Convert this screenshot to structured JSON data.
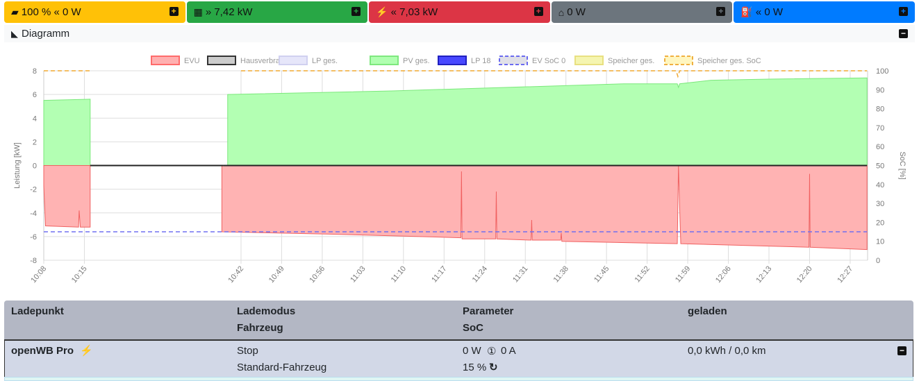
{
  "topbar": [
    {
      "icon": "battery-icon",
      "glyph": "▰",
      "text": "100 % « 0 W",
      "color": "#ffc107"
    },
    {
      "icon": "solar-panel-icon",
      "glyph": "▦",
      "text": "» 7,42 kW",
      "color": "#28a745"
    },
    {
      "icon": "power-grid-icon",
      "glyph": "⚡",
      "text": "« 7,03 kW",
      "color": "#dc3545"
    },
    {
      "icon": "home-icon",
      "glyph": "⌂",
      "text": "0 W",
      "color": "#6c757d"
    },
    {
      "icon": "charging-station-icon",
      "glyph": "⛽",
      "text": "« 0 W",
      "color": "#007bff"
    }
  ],
  "diagram": {
    "title": "Diagramm"
  },
  "chart_data": {
    "type": "area",
    "legend": [
      {
        "name": "EVU",
        "fill": "#ffb0b0",
        "stroke": "#ff6b6b",
        "dash": false
      },
      {
        "name": "Hausverbrauch",
        "fill": "#cccccc",
        "stroke": "#333333",
        "dash": false
      },
      {
        "name": "LP ges.",
        "fill": "#e6e6fa",
        "stroke": "#d0d0f0",
        "dash": false
      },
      {
        "name": "PV ges.",
        "fill": "#b0ffb0",
        "stroke": "#7ee87e",
        "dash": false
      },
      {
        "name": "LP 18",
        "fill": "#4848ff",
        "stroke": "#2020c0",
        "dash": false
      },
      {
        "name": "EV SoC 0",
        "fill": "#e0e0e8",
        "stroke": "#6a6af0",
        "dash": true
      },
      {
        "name": "Speicher ges.",
        "fill": "#f5f5b0",
        "stroke": "#e8e080",
        "dash": false
      },
      {
        "name": "Speicher ges. SoC",
        "fill": "#fff6c0",
        "stroke": "#f0b040",
        "dash": true
      }
    ],
    "ylabel": "Leistung [kW]",
    "y2label": "SoC [%]",
    "ylim": [
      -8,
      8
    ],
    "y2lim": [
      0,
      100
    ],
    "yticks": [
      "8",
      "6",
      "4",
      "2",
      "0",
      "-2",
      "-4",
      "-6",
      "-8"
    ],
    "y2ticks": [
      "100",
      "90",
      "80",
      "70",
      "60",
      "50",
      "40",
      "30",
      "20",
      "10",
      "0"
    ],
    "xticks": [
      "10:08",
      "10:15",
      "10:42",
      "10:49",
      "10:56",
      "11:03",
      "11:10",
      "11:17",
      "11:24",
      "11:31",
      "11:38",
      "11:45",
      "11:52",
      "11:59",
      "12:06",
      "12:13",
      "12:20",
      "12:27"
    ],
    "x_minutes_from_1008": [
      0,
      7,
      34,
      41,
      48,
      55,
      62,
      69,
      76,
      83,
      90,
      97,
      104,
      111,
      118,
      125,
      132,
      139
    ],
    "xmax_minutes": 142,
    "evu": [
      [
        [
          0,
          -1.7
        ],
        [
          0.3,
          -5.1
        ],
        [
          6,
          -5.2
        ],
        [
          6.1,
          -3.8
        ],
        [
          6.3,
          -5.2
        ],
        [
          8,
          -5.2
        ]
      ],
      [
        [
          30.7,
          -5.6
        ],
        [
          50,
          -5.8
        ],
        [
          71.9,
          -6.1
        ],
        [
          72,
          -0.5
        ],
        [
          72.1,
          -6.2
        ],
        [
          77.9,
          -6.2
        ],
        [
          78,
          -2.2
        ],
        [
          78.1,
          -6.2
        ],
        [
          84,
          -6.3
        ],
        [
          84.1,
          -4.6
        ],
        [
          84.2,
          -6.3
        ],
        [
          89.1,
          -6.3
        ],
        [
          89.2,
          -5.7
        ],
        [
          89.3,
          -6.4
        ],
        [
          109.2,
          -6.6
        ],
        [
          109.4,
          0
        ],
        [
          109.6,
          -3.5
        ],
        [
          109.8,
          -6.6
        ],
        [
          131.9,
          -6.9
        ],
        [
          132,
          -0.7
        ],
        [
          132.1,
          -6.9
        ],
        [
          141.9,
          -7.1
        ]
      ]
    ],
    "pv": [
      [
        [
          0,
          5.5
        ],
        [
          8,
          5.6
        ]
      ],
      [
        [
          31.7,
          6.0
        ],
        [
          60,
          6.3
        ],
        [
          80,
          6.6
        ],
        [
          100,
          6.9
        ],
        [
          109.2,
          6.9
        ],
        [
          109.4,
          6.6
        ],
        [
          109.6,
          6.9
        ],
        [
          115,
          7.2
        ],
        [
          125,
          7.3
        ],
        [
          141.9,
          7.4
        ]
      ]
    ],
    "hausverbrauch": [
      [
        [
          8,
          0
        ],
        [
          31,
          0
        ]
      ],
      [
        [
          31,
          0
        ],
        [
          141.9,
          0
        ]
      ]
    ],
    "ev_soc": [
      [
        0,
        15
      ],
      [
        141.9,
        15
      ]
    ],
    "speicher_soc": [
      [
        [
          0,
          100
        ],
        [
          8,
          100
        ]
      ],
      [
        [
          34,
          100
        ],
        [
          109,
          100
        ],
        [
          109.3,
          97
        ],
        [
          109.6,
          100
        ],
        [
          141.9,
          100
        ]
      ]
    ]
  },
  "table": {
    "headers": {
      "col1": "Ladepunkt",
      "col2a": "Lademodus",
      "col2b": "Fahrzeug",
      "col3a": "Parameter",
      "col3b": "SoC",
      "col4": "geladen"
    },
    "row": {
      "name": "openWB Pro",
      "mode": "Stop",
      "vehicle": "Standard-Fahrzeug",
      "power": "0 W",
      "phase_icon": "①",
      "current": "0 A",
      "soc": "15 %",
      "charged": "0,0 kWh / 0,0 km"
    }
  }
}
